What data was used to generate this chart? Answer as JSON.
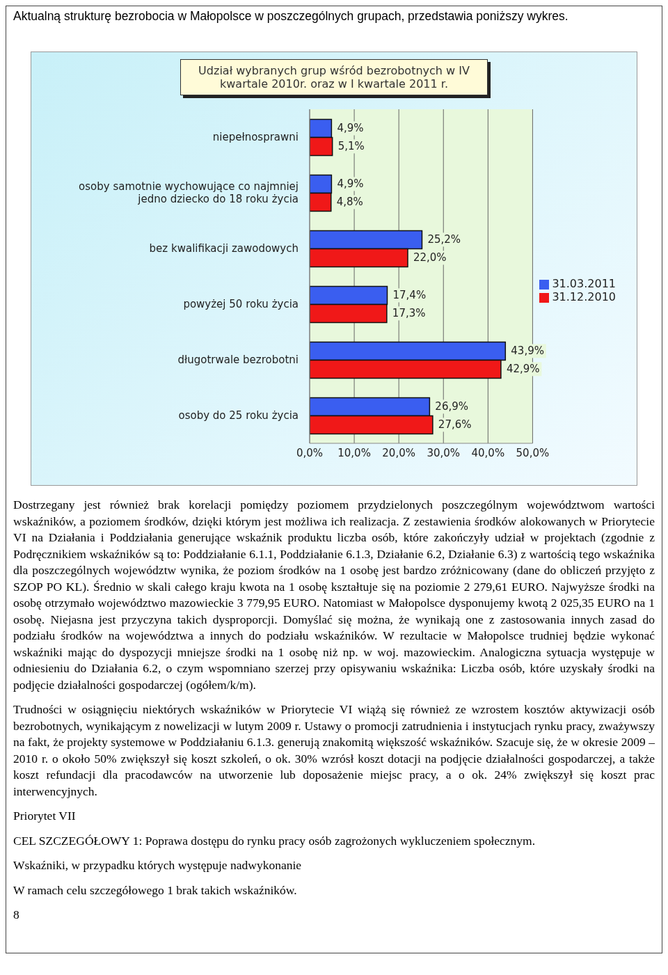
{
  "chart_data": {
    "type": "bar",
    "orientation": "horizontal",
    "title": "Udział wybranych grup wśród bezrobotnych w IV kwartale 2010r. oraz w I kwartale 2011 r.",
    "categories": [
      "niepełnosprawni",
      "osoby samotnie wychowujące co najmniej jedno dziecko do 18 roku życia",
      "bez kwalifikacji zawodowych",
      "powyżej 50 roku życia",
      "długotrwale bezrobotni",
      "osoby do 25 roku życia"
    ],
    "series": [
      {
        "name": "31.03.2011",
        "color": "#3a5ef0",
        "values": [
          4.9,
          4.9,
          25.2,
          17.4,
          43.9,
          26.9
        ],
        "value_labels": [
          "4,9%",
          "4,9%",
          "25,2%",
          "17,4%",
          "43,9%",
          "26,9%"
        ]
      },
      {
        "name": "31.12.2010",
        "color": "#f01818",
        "values": [
          5.1,
          4.8,
          22.0,
          17.3,
          42.9,
          27.6
        ],
        "value_labels": [
          "5,1%",
          "4,8%",
          "22,0%",
          "17,3%",
          "42,9%",
          "27,6%"
        ]
      }
    ],
    "xlim": [
      0,
      50
    ],
    "xticks": [
      {
        "value": 0,
        "label": "0,0%"
      },
      {
        "value": 10,
        "label": "10,0%"
      },
      {
        "value": 20,
        "label": "20,0%"
      },
      {
        "value": 30,
        "label": "30,0%"
      },
      {
        "value": 40,
        "label": "40,0%"
      },
      {
        "value": 50,
        "label": "50,0%"
      }
    ],
    "grid": "x",
    "legend": "right",
    "annotations": [
      "Aktualną strukturę bezrobocia  w Małopolsce w poszczególnych grupach, przedstawia poniższy wykres.",
      "Dostrzegany jest również brak korelacji pomiędzy poziomem przydzielonych poszczególnym województwom wartości wskaźników, a poziomem środków, dzięki którym jest możliwa ich realizacja. Z zestawienia środków alokowanych w Priorytecie VI  na Działania i Poddziałania generujące wskaźnik produktu liczba osób, które zakończyły udział w projektach (zgodnie z Podręcznikiem wskaźników są to: Poddziałanie 6.1.1, Poddziałanie 6.1.3, Działanie 6.2, Działanie 6.3) z wartością tego wskaźnika dla poszczególnych województw wynika, że poziom środków na 1 osobę jest bardzo zróżnicowany (dane do obliczeń przyjęto z SZOP PO KL). Średnio w skali całego kraju kwota na 1 osobę kształtuje się na poziomie 2 279,61 EURO. Najwyższe środki na osobę otrzymało województwo mazowieckie 3 779,95 EURO. Natomiast w Małopolsce dysponujemy kwotą 2 025,35 EURO na 1 osobę. Niejasna jest przyczyna takich dysproporcji. Domyślać się można, że wynikają one z zastosowania innych zasad do podziału środków na województwa a innych do podziału wskaźników. W rezultacie w Małopolsce trudniej będzie wykonać wskaźniki mając do dyspozycji mniejsze środki na 1 osobę niż np. w woj. mazowieckim. Analogiczna sytuacja występuje w odniesieniu do Działania 6.2, o czym wspomniano szerzej przy opisywaniu wskaźnika: Liczba osób, które uzyskały środki na podjęcie działalności gospodarczej (ogółem/k/m).",
      "Trudności w osiągnięciu niektórych wskaźników w Priorytecie VI wiążą się również ze wzrostem kosztów aktywizacji osób bezrobotnych, wynikającym z nowelizacji w lutym 2009 r. Ustawy o promocji zatrudnienia i instytucjach rynku pracy, zważywszy na fakt, że projekty systemowe w Poddziałaniu 6.1.3. generują znakomitą większość wskaźników. Szacuje się, że w okresie 2009 –2010 r. o około 50% zwiększył się koszt szkoleń, o ok. 30% wzrósł koszt dotacji na podjęcie działalności gospodarczej, a także koszt refundacji dla pracodawców na utworzenie lub doposażenie miejsc pracy, a o ok. 24% zwiększył się koszt prac interwencyjnych.",
      "Priorytet VII",
      "CEL SZCZEGÓŁOWY 1: Poprawa dostępu do rynku pracy osób zagrożonych wykluczeniem społecznym.",
      "Wskaźniki, w przypadku których występuje nadwykonanie",
      "W ramach celu szczegółowego 1 brak takich wskaźników.",
      "8"
    ]
  }
}
